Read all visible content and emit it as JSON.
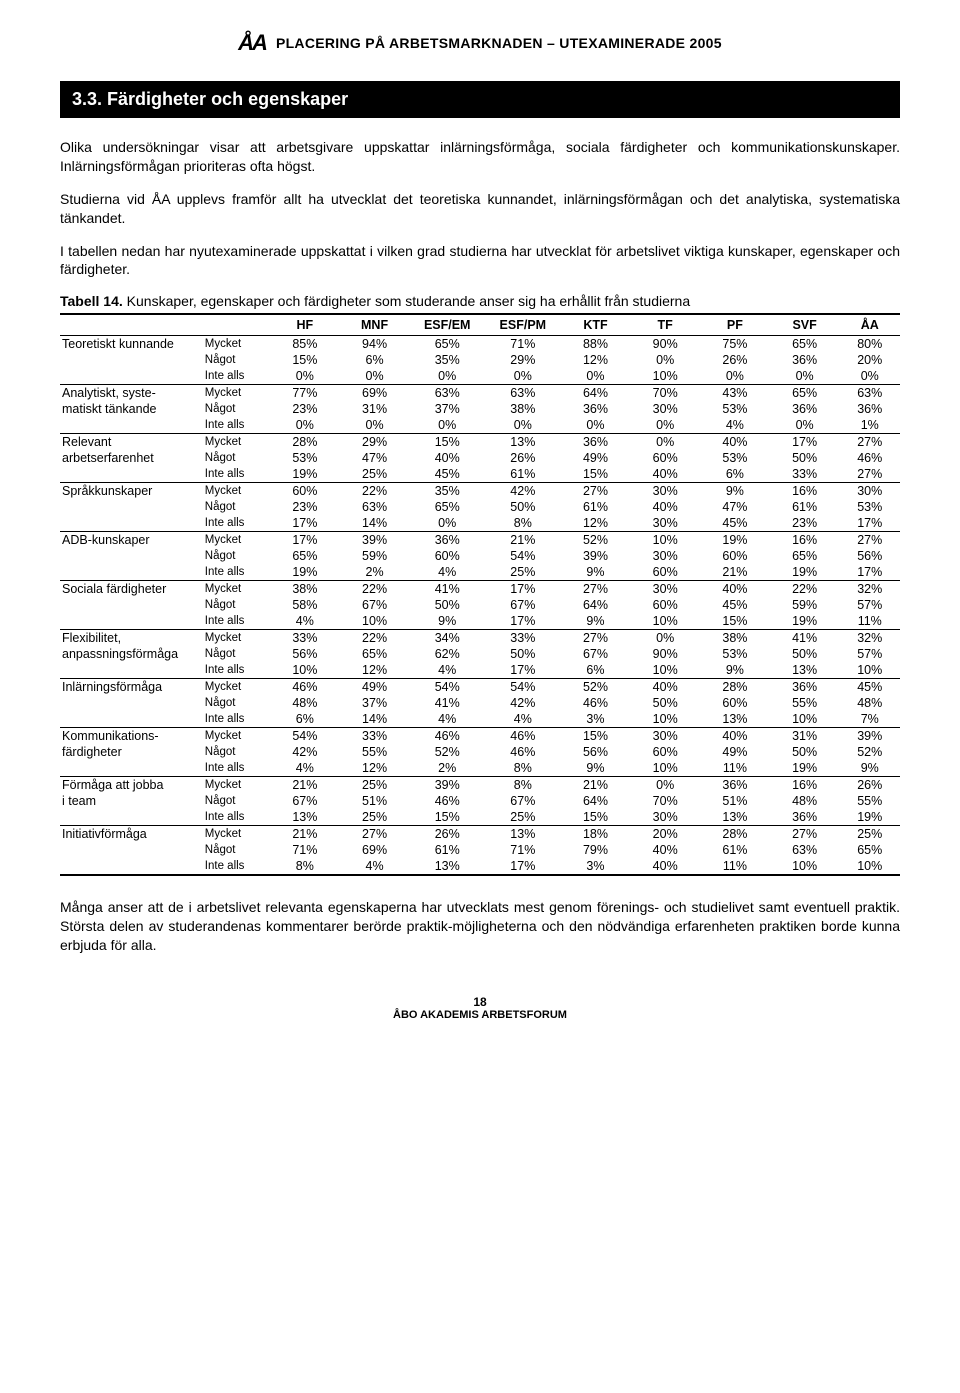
{
  "header": {
    "logo": "ÅA",
    "title": "PLACERING PÅ ARBETSMARKNADEN – UTEXAMINERADE 2005"
  },
  "section": {
    "number": "3.3.",
    "title": "Färdigheter och egenskaper"
  },
  "paragraphs": {
    "p1": "Olika undersökningar visar att arbetsgivare uppskattar inlärningsförmåga, sociala färdigheter och kommunikationskunskaper. Inlärningsförmågan prioriteras ofta högst.",
    "p2": "Studierna vid ÅA upplevs framför allt ha utvecklat det teoretiska kunnandet, inlärningsförmågan och det analytiska, systematiska tänkandet.",
    "p3": "I tabellen nedan har nyutexaminerade uppskattat i vilken grad studierna har utvecklat för arbetslivet viktiga kunskaper, egenskaper och färdigheter.",
    "caption_bold": "Tabell 14.",
    "caption_rest": " Kunskaper, egenskaper och färdigheter som studerande anser sig ha erhållit från studierna",
    "p4": "Många anser att de i arbetslivet relevanta egenskaperna har utvecklats mest genom förenings- och studielivet samt eventuell praktik. Största delen av studerandenas kommentarer berörde praktik-möjligheterna och den nödvändiga erfarenheten praktiken borde kunna erbjuda för alla."
  },
  "table": {
    "columns": [
      "",
      "",
      "HF",
      "MNF",
      "ESF/EM",
      "ESF/PM",
      "KTF",
      "TF",
      "PF",
      "SVF",
      "ÅA"
    ],
    "sublevels": [
      "Mycket",
      "Något",
      "Inte alls"
    ],
    "groups": [
      {
        "label": "Teoretiskt kunnande",
        "rows": [
          [
            "85%",
            "94%",
            "65%",
            "71%",
            "88%",
            "90%",
            "75%",
            "65%",
            "80%"
          ],
          [
            "15%",
            "6%",
            "35%",
            "29%",
            "12%",
            "0%",
            "26%",
            "36%",
            "20%"
          ],
          [
            "0%",
            "0%",
            "0%",
            "0%",
            "0%",
            "10%",
            "0%",
            "0%",
            "0%"
          ]
        ]
      },
      {
        "label": "Analytiskt, syste-\nmatiskt tänkande",
        "rows": [
          [
            "77%",
            "69%",
            "63%",
            "63%",
            "64%",
            "70%",
            "43%",
            "65%",
            "63%"
          ],
          [
            "23%",
            "31%",
            "37%",
            "38%",
            "36%",
            "30%",
            "53%",
            "36%",
            "36%"
          ],
          [
            "0%",
            "0%",
            "0%",
            "0%",
            "0%",
            "0%",
            "4%",
            "0%",
            "1%"
          ]
        ]
      },
      {
        "label": "Relevant\narbetserfarenhet",
        "rows": [
          [
            "28%",
            "29%",
            "15%",
            "13%",
            "36%",
            "0%",
            "40%",
            "17%",
            "27%"
          ],
          [
            "53%",
            "47%",
            "40%",
            "26%",
            "49%",
            "60%",
            "53%",
            "50%",
            "46%"
          ],
          [
            "19%",
            "25%",
            "45%",
            "61%",
            "15%",
            "40%",
            "6%",
            "33%",
            "27%"
          ]
        ]
      },
      {
        "label": "Språkkunskaper",
        "rows": [
          [
            "60%",
            "22%",
            "35%",
            "42%",
            "27%",
            "30%",
            "9%",
            "16%",
            "30%"
          ],
          [
            "23%",
            "63%",
            "65%",
            "50%",
            "61%",
            "40%",
            "47%",
            "61%",
            "53%"
          ],
          [
            "17%",
            "14%",
            "0%",
            "8%",
            "12%",
            "30%",
            "45%",
            "23%",
            "17%"
          ]
        ]
      },
      {
        "label": "ADB-kunskaper",
        "rows": [
          [
            "17%",
            "39%",
            "36%",
            "21%",
            "52%",
            "10%",
            "19%",
            "16%",
            "27%"
          ],
          [
            "65%",
            "59%",
            "60%",
            "54%",
            "39%",
            "30%",
            "60%",
            "65%",
            "56%"
          ],
          [
            "19%",
            "2%",
            "4%",
            "25%",
            "9%",
            "60%",
            "21%",
            "19%",
            "17%"
          ]
        ]
      },
      {
        "label": "Sociala färdigheter",
        "rows": [
          [
            "38%",
            "22%",
            "41%",
            "17%",
            "27%",
            "30%",
            "40%",
            "22%",
            "32%"
          ],
          [
            "58%",
            "67%",
            "50%",
            "67%",
            "64%",
            "60%",
            "45%",
            "59%",
            "57%"
          ],
          [
            "4%",
            "10%",
            "9%",
            "17%",
            "9%",
            "10%",
            "15%",
            "19%",
            "11%"
          ]
        ]
      },
      {
        "label": "Flexibilitet,\nanpassningsförmåga",
        "rows": [
          [
            "33%",
            "22%",
            "34%",
            "33%",
            "27%",
            "0%",
            "38%",
            "41%",
            "32%"
          ],
          [
            "56%",
            "65%",
            "62%",
            "50%",
            "67%",
            "90%",
            "53%",
            "50%",
            "57%"
          ],
          [
            "10%",
            "12%",
            "4%",
            "17%",
            "6%",
            "10%",
            "9%",
            "13%",
            "10%"
          ]
        ]
      },
      {
        "label": "Inlärningsförmåga",
        "rows": [
          [
            "46%",
            "49%",
            "54%",
            "54%",
            "52%",
            "40%",
            "28%",
            "36%",
            "45%"
          ],
          [
            "48%",
            "37%",
            "41%",
            "42%",
            "46%",
            "50%",
            "60%",
            "55%",
            "48%"
          ],
          [
            "6%",
            "14%",
            "4%",
            "4%",
            "3%",
            "10%",
            "13%",
            "10%",
            "7%"
          ]
        ]
      },
      {
        "label": "Kommunikations-\nfärdigheter",
        "rows": [
          [
            "54%",
            "33%",
            "46%",
            "46%",
            "15%",
            "30%",
            "40%",
            "31%",
            "39%"
          ],
          [
            "42%",
            "55%",
            "52%",
            "46%",
            "56%",
            "60%",
            "49%",
            "50%",
            "52%"
          ],
          [
            "4%",
            "12%",
            "2%",
            "8%",
            "9%",
            "10%",
            "11%",
            "19%",
            "9%"
          ]
        ]
      },
      {
        "label": "Förmåga att jobba\ni team",
        "rows": [
          [
            "21%",
            "25%",
            "39%",
            "8%",
            "21%",
            "0%",
            "36%",
            "16%",
            "26%"
          ],
          [
            "67%",
            "51%",
            "46%",
            "67%",
            "64%",
            "70%",
            "51%",
            "48%",
            "55%"
          ],
          [
            "13%",
            "25%",
            "15%",
            "25%",
            "15%",
            "30%",
            "13%",
            "36%",
            "19%"
          ]
        ]
      },
      {
        "label": "Initiativförmåga",
        "rows": [
          [
            "21%",
            "27%",
            "26%",
            "13%",
            "18%",
            "20%",
            "28%",
            "27%",
            "25%"
          ],
          [
            "71%",
            "69%",
            "61%",
            "71%",
            "79%",
            "40%",
            "61%",
            "63%",
            "65%"
          ],
          [
            "8%",
            "4%",
            "13%",
            "17%",
            "3%",
            "40%",
            "11%",
            "10%",
            "10%"
          ]
        ]
      }
    ]
  },
  "footer": {
    "page": "18",
    "org": "ÅBO AKADEMIS ARBETSFORUM"
  },
  "style": {
    "background_color": "#ffffff",
    "text_color": "#000000",
    "header_bg": "#000000",
    "header_fg": "#ffffff",
    "body_fontsize": 14,
    "table_fontsize": 12.5,
    "col_widths_pct": [
      17,
      8,
      8.3,
      8.3,
      9,
      9,
      8.3,
      8.3,
      8.3,
      8.3,
      8.3
    ]
  }
}
